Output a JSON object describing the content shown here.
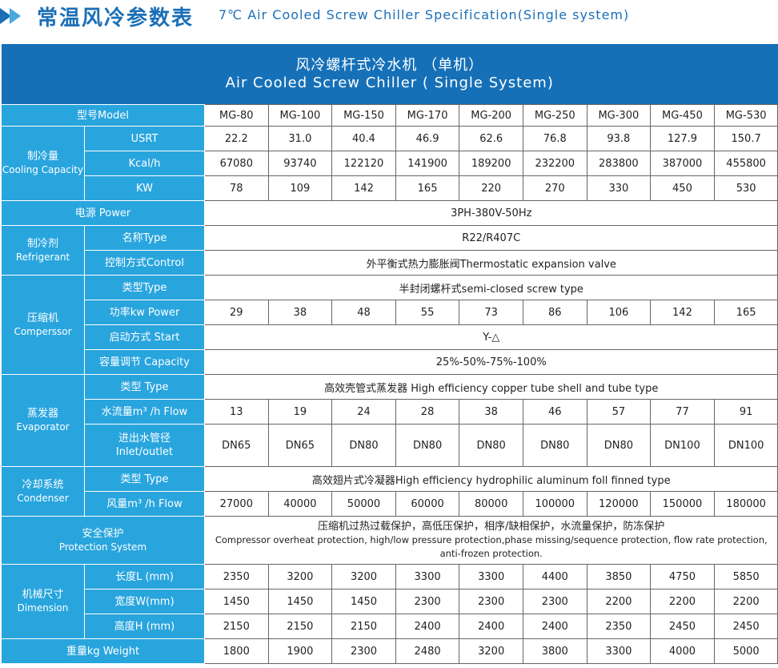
{
  "page": {
    "title_cn": "常温风冷参数表",
    "title_en": "7℃ Air Cooled Screw Chiller Specification(Single system)"
  },
  "table": {
    "header_cn": "风冷螺杆式冷水机 （单机）",
    "header_en": "Air Cooled Screw Chiller ( Single System)",
    "model_label": "型号Model",
    "models": [
      "MG-80",
      "MG-100",
      "MG-150",
      "MG-170",
      "MG-200",
      "MG-250",
      "MG-300",
      "MG-450",
      "MG-530"
    ],
    "groups": [
      {
        "cn": "制冷量",
        "en": "Cooling Capacity",
        "rows": [
          {
            "label": "USRT",
            "values": [
              "22.2",
              "31.0",
              "40.4",
              "46.9",
              "62.6",
              "76.8",
              "93.8",
              "127.9",
              "150.7"
            ]
          },
          {
            "label": "Kcal/h",
            "values": [
              "67080",
              "93740",
              "122120",
              "141900",
              "189200",
              "232200",
              "283800",
              "387000",
              "455800"
            ]
          },
          {
            "label": "KW",
            "values": [
              "78",
              "109",
              "142",
              "165",
              "220",
              "270",
              "330",
              "450",
              "530"
            ]
          }
        ]
      },
      {
        "cn": "电源 Power",
        "en": "",
        "full": true,
        "rows": [
          {
            "label": "",
            "span": "3PH-380V-50Hz"
          }
        ]
      },
      {
        "cn": "制冷剂",
        "en": "Refrigerant",
        "rows": [
          {
            "label": "名称Type",
            "span": "R22/R407C"
          },
          {
            "label": "控制方式Control",
            "span": "外平衡式热力膨胀阀Thermostatic expansion valve"
          }
        ]
      },
      {
        "cn": "压缩机",
        "en": "Comperssor",
        "rows": [
          {
            "label": "类型Type",
            "span": "半封闭螺杆式semi-closed screw type"
          },
          {
            "label": "功率kw Power",
            "values": [
              "29",
              "38",
              "48",
              "55",
              "73",
              "86",
              "106",
              "142",
              "165"
            ]
          },
          {
            "label": "启动方式 Start",
            "span": "Y-△"
          },
          {
            "label": "容量调节 Capacity",
            "span": "25%-50%-75%-100%"
          }
        ]
      },
      {
        "cn": "蒸发器",
        "en": "Evaporator",
        "rows": [
          {
            "label": "类型 Type",
            "span": "高效壳管式蒸发器 High efficiency copper tube shell and tube type"
          },
          {
            "label": "水流量m³ /h Flow",
            "values": [
              "13",
              "19",
              "24",
              "28",
              "38",
              "46",
              "57",
              "77",
              "91"
            ]
          },
          {
            "label": "进出水管径",
            "label2": "Inlet/outlet",
            "values": [
              "DN65",
              "DN65",
              "DN80",
              "DN80",
              "DN80",
              "DN80",
              "DN80",
              "DN100",
              "DN100"
            ]
          }
        ]
      },
      {
        "cn": "冷却系统",
        "en": "Condenser",
        "rows": [
          {
            "label": "类型 Type",
            "span": "高效翅片式冷凝器High efficiency hydrophilic aluminum foll finned type"
          },
          {
            "label": "风量m³ /h Flow",
            "values": [
              "27000",
              "40000",
              "50000",
              "60000",
              "80000",
              "100000",
              "120000",
              "150000",
              "180000"
            ]
          }
        ]
      },
      {
        "cn": "安全保护",
        "en": "Protection System",
        "full": true,
        "rows": [
          {
            "label": "",
            "span": "压缩机过热过载保护，高低压保护，相序/缺相保护，水流量保护，防冻保护",
            "span2": "Compressor overheat protection, high/low pressure protection,phase missing/sequence protection, flow rate protection, anti-frozen protection."
          }
        ]
      },
      {
        "cn": "机械尺寸",
        "en": "Dimension",
        "rows": [
          {
            "label": "长度L (mm)",
            "values": [
              "2350",
              "3200",
              "3200",
              "3300",
              "3300",
              "4400",
              "3850",
              "4750",
              "5850"
            ]
          },
          {
            "label": "宽度W(mm)",
            "values": [
              "1450",
              "1450",
              "1450",
              "2300",
              "2300",
              "2300",
              "2200",
              "2200",
              "2200"
            ]
          },
          {
            "label": "高度H (mm)",
            "values": [
              "2150",
              "2150",
              "2150",
              "2400",
              "2400",
              "2400",
              "2350",
              "2450",
              "2450"
            ]
          }
        ]
      },
      {
        "cn": "重量kg  Weight",
        "en": "",
        "full": true,
        "rows": [
          {
            "label": "",
            "values": [
              "1800",
              "1900",
              "2300",
              "2480",
              "3200",
              "3800",
              "3300",
              "4000",
              "5000"
            ]
          }
        ]
      }
    ]
  },
  "colors": {
    "title": "#1b6fb6",
    "header_bg": "#1570b8",
    "label_bg": "#29a5de"
  }
}
